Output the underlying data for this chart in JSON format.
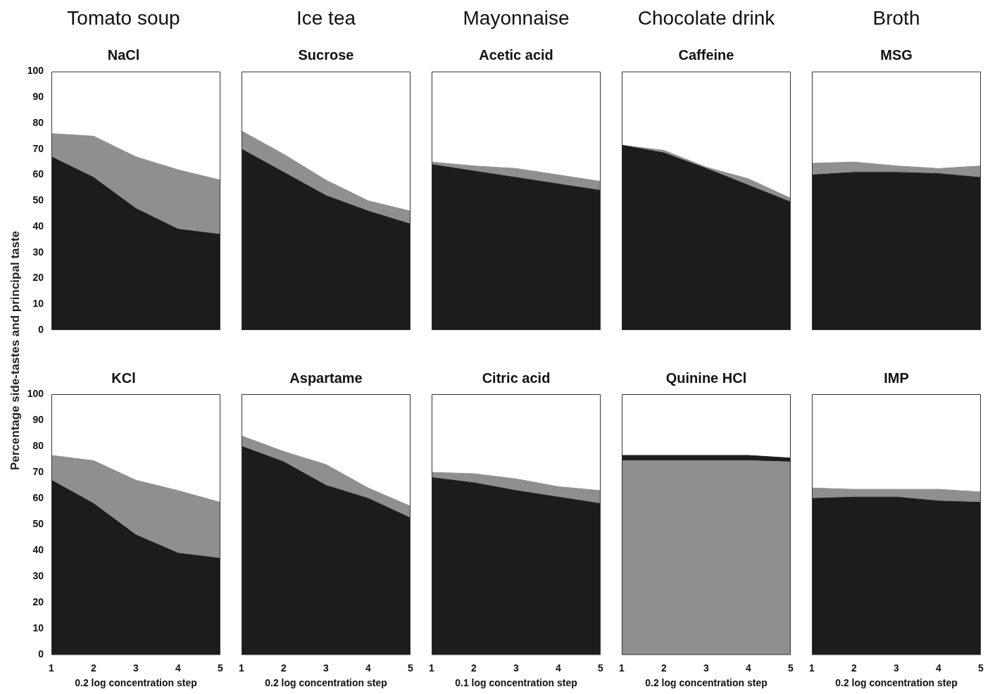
{
  "chart_data": [
    {
      "type": "area",
      "title": "Tomato soup",
      "subtitle": "NaCl",
      "ylabel": "Percentage side-tastes and principal taste",
      "x": [
        1,
        2,
        3,
        4,
        5
      ],
      "stacked": true,
      "xlim": [
        1,
        5
      ],
      "xticks": [
        1,
        2,
        3,
        4,
        5
      ],
      "ylim": [
        0,
        100
      ],
      "yticks": [
        0,
        10,
        20,
        30,
        40,
        50,
        60,
        70,
        80,
        90,
        100
      ],
      "tick_labels": "y",
      "series": [
        {
          "color": "#1c1c1c",
          "values": [
            67,
            59,
            47,
            39,
            37
          ]
        },
        {
          "color": "#8f8f8f",
          "values": [
            9,
            16,
            20,
            23,
            21
          ]
        }
      ]
    },
    {
      "type": "area",
      "title": "Ice tea",
      "subtitle": "Sucrose",
      "x": [
        1,
        2,
        3,
        4,
        5
      ],
      "stacked": true,
      "xlim": [
        1,
        5
      ],
      "xticks": [
        1,
        2,
        3,
        4,
        5
      ],
      "ylim": [
        0,
        100
      ],
      "yticks": [
        0,
        10,
        20,
        30,
        40,
        50,
        60,
        70,
        80,
        90,
        100
      ],
      "tick_labels": false,
      "series": [
        {
          "color": "#1c1c1c",
          "values": [
            70,
            61,
            52,
            46,
            41
          ]
        },
        {
          "color": "#8f8f8f",
          "values": [
            7,
            7,
            6,
            4,
            5
          ]
        }
      ]
    },
    {
      "type": "area",
      "title": "Mayonnaise",
      "subtitle": "Acetic acid",
      "x": [
        1,
        2,
        3,
        4,
        5
      ],
      "stacked": true,
      "xlim": [
        1,
        5
      ],
      "xticks": [
        1,
        2,
        3,
        4,
        5
      ],
      "ylim": [
        0,
        100
      ],
      "yticks": [
        0,
        10,
        20,
        30,
        40,
        50,
        60,
        70,
        80,
        90,
        100
      ],
      "tick_labels": false,
      "series": [
        {
          "color": "#1c1c1c",
          "values": [
            64,
            61.5,
            59,
            56.5,
            54
          ]
        },
        {
          "color": "#8f8f8f",
          "values": [
            1,
            2,
            3.5,
            3.5,
            3.5
          ]
        }
      ]
    },
    {
      "type": "area",
      "title": "Chocolate drink",
      "subtitle": "Caffeine",
      "x": [
        1,
        2,
        3,
        4,
        5
      ],
      "stacked": true,
      "xlim": [
        1,
        5
      ],
      "xticks": [
        1,
        2,
        3,
        4,
        5
      ],
      "ylim": [
        0,
        100
      ],
      "yticks": [
        0,
        10,
        20,
        30,
        40,
        50,
        60,
        70,
        80,
        90,
        100
      ],
      "tick_labels": false,
      "series": [
        {
          "color": "#1c1c1c",
          "values": [
            71.5,
            68.5,
            62.5,
            56,
            49.5
          ]
        },
        {
          "color": "#8f8f8f",
          "values": [
            0,
            1,
            0.5,
            2.5,
            1.5
          ]
        }
      ]
    },
    {
      "type": "area",
      "title": "Broth",
      "subtitle": "MSG",
      "x": [
        1,
        2,
        3,
        4,
        5
      ],
      "stacked": true,
      "xlim": [
        1,
        5
      ],
      "xticks": [
        1,
        2,
        3,
        4,
        5
      ],
      "ylim": [
        0,
        100
      ],
      "yticks": [
        0,
        10,
        20,
        30,
        40,
        50,
        60,
        70,
        80,
        90,
        100
      ],
      "tick_labels": false,
      "series": [
        {
          "color": "#1c1c1c",
          "values": [
            60,
            61,
            61,
            60.5,
            59
          ]
        },
        {
          "color": "#8f8f8f",
          "values": [
            4.5,
            4,
            2.5,
            2,
            4.5
          ]
        }
      ]
    },
    {
      "type": "area",
      "title": "KCl",
      "xlabel": "0.2 log concentration step",
      "x": [
        1,
        2,
        3,
        4,
        5
      ],
      "stacked": true,
      "xlim": [
        1,
        5
      ],
      "xticks": [
        1,
        2,
        3,
        4,
        5
      ],
      "ylim": [
        0,
        100
      ],
      "yticks": [
        0,
        10,
        20,
        30,
        40,
        50,
        60,
        70,
        80,
        90,
        100
      ],
      "series": [
        {
          "color": "#1c1c1c",
          "values": [
            67,
            58,
            46,
            39,
            37
          ]
        },
        {
          "color": "#8f8f8f",
          "values": [
            9.5,
            16.5,
            21,
            24,
            21.5
          ]
        }
      ]
    },
    {
      "type": "area",
      "title": "Aspartame",
      "xlabel": "0.2 log concentration step",
      "x": [
        1,
        2,
        3,
        4,
        5
      ],
      "stacked": true,
      "xlim": [
        1,
        5
      ],
      "xticks": [
        1,
        2,
        3,
        4,
        5
      ],
      "ylim": [
        0,
        100
      ],
      "yticks": [
        0,
        10,
        20,
        30,
        40,
        50,
        60,
        70,
        80,
        90,
        100
      ],
      "tick_labels": "x",
      "series": [
        {
          "color": "#1c1c1c",
          "values": [
            80,
            74,
            65,
            60,
            52.5
          ]
        },
        {
          "color": "#8f8f8f",
          "values": [
            4,
            4,
            8,
            4,
            4.5
          ]
        }
      ]
    },
    {
      "type": "area",
      "title": "Citric acid",
      "xlabel": "0.1 log concentration step",
      "x": [
        1,
        2,
        3,
        4,
        5
      ],
      "stacked": true,
      "xlim": [
        1,
        5
      ],
      "xticks": [
        1,
        2,
        3,
        4,
        5
      ],
      "ylim": [
        0,
        100
      ],
      "yticks": [
        0,
        10,
        20,
        30,
        40,
        50,
        60,
        70,
        80,
        90,
        100
      ],
      "tick_labels": "x",
      "series": [
        {
          "color": "#1c1c1c",
          "values": [
            68,
            66,
            63,
            60.5,
            58
          ]
        },
        {
          "color": "#8f8f8f",
          "values": [
            2,
            3.5,
            4.5,
            4,
            5
          ]
        }
      ]
    },
    {
      "type": "area",
      "title": "Quinine HCl",
      "xlabel": "0.2 log concentration step",
      "x": [
        1,
        2,
        3,
        4,
        5
      ],
      "stacked": true,
      "xlim": [
        1,
        5
      ],
      "xticks": [
        1,
        2,
        3,
        4,
        5
      ],
      "ylim": [
        0,
        100
      ],
      "yticks": [
        0,
        10,
        20,
        30,
        40,
        50,
        60,
        70,
        80,
        90,
        100
      ],
      "tick_labels": "x",
      "series": [
        {
          "color": "#8f8f8f",
          "values": [
            74.5,
            74.5,
            74.5,
            74.5,
            74
          ]
        },
        {
          "color": "#1c1c1c",
          "values": [
            2,
            2,
            2,
            2,
            1.5
          ]
        }
      ]
    },
    {
      "type": "area",
      "title": "IMP",
      "xlabel": "0.2 log concentration step",
      "x": [
        1,
        2,
        3,
        4,
        5
      ],
      "stacked": true,
      "xlim": [
        1,
        5
      ],
      "xticks": [
        1,
        2,
        3,
        4,
        5
      ],
      "ylim": [
        0,
        100
      ],
      "yticks": [
        0,
        10,
        20,
        30,
        40,
        50,
        60,
        70,
        80,
        90,
        100
      ],
      "tick_labels": "x",
      "series": [
        {
          "color": "#1c1c1c",
          "values": [
            60,
            60.5,
            60.5,
            59,
            58.5
          ]
        },
        {
          "color": "#8f8f8f",
          "values": [
            4,
            3,
            3,
            4.5,
            4
          ]
        }
      ]
    }
  ]
}
